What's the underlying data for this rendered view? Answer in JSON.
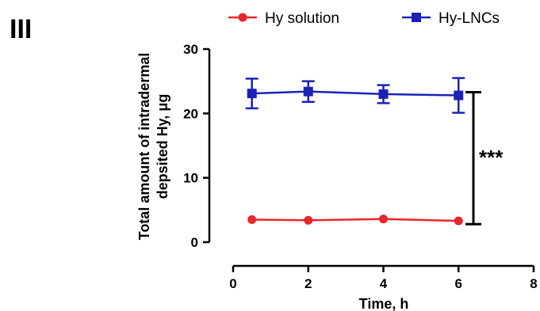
{
  "panel_label": "III",
  "chart_data": {
    "type": "line",
    "xlabel": "Time, h",
    "ylabel_line1": "Total amount of intradermal",
    "ylabel_line2": "depsited Hy, μg",
    "xlim": [
      0,
      8
    ],
    "ylim": [
      0,
      30
    ],
    "xticks": [
      0,
      2,
      4,
      6,
      8
    ],
    "yticks": [
      0,
      10,
      20,
      30
    ],
    "grid": false,
    "legend_position": "top",
    "series": [
      {
        "name": "Hy solution",
        "color": "#e8262b",
        "marker": "circle",
        "x": [
          0.5,
          2,
          4,
          6
        ],
        "y": [
          3.5,
          3.4,
          3.6,
          3.3
        ],
        "err": [
          0.3,
          0.3,
          0.3,
          0.3
        ]
      },
      {
        "name": "Hy-LNCs",
        "color": "#1c22b5",
        "marker": "square",
        "x": [
          0.5,
          2,
          4,
          6
        ],
        "y": [
          23.1,
          23.4,
          23.0,
          22.8
        ],
        "err": [
          2.3,
          1.6,
          1.4,
          2.7
        ]
      }
    ],
    "annotations": [
      {
        "text": "***",
        "type": "significance-bracket",
        "y_from": 2.8,
        "y_to": 23.3
      }
    ]
  }
}
